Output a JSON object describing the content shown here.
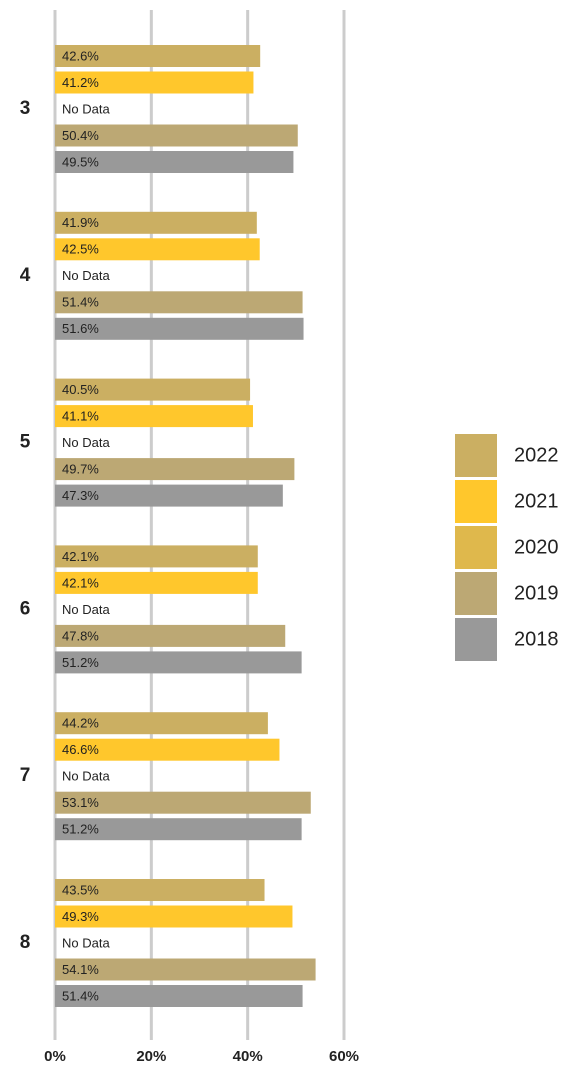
{
  "chart_data": {
    "type": "bar",
    "orientation": "horizontal",
    "categories": [
      "3",
      "4",
      "5",
      "6",
      "7",
      "8"
    ],
    "series": [
      {
        "name": "2022",
        "color": "#cbaf62",
        "values": [
          42.6,
          41.9,
          40.5,
          42.1,
          44.2,
          43.5
        ],
        "value_labels": [
          "42.6%",
          "41.9%",
          "40.5%",
          "42.1%",
          "44.2%",
          "43.5%"
        ]
      },
      {
        "name": "2021",
        "color": "#ffc72c",
        "values": [
          41.2,
          42.5,
          41.1,
          42.1,
          46.6,
          49.3
        ],
        "value_labels": [
          "41.2%",
          "42.5%",
          "41.1%",
          "42.1%",
          "46.6%",
          "49.3%"
        ]
      },
      {
        "name": "2020",
        "color": "#dfb84c",
        "values": [
          null,
          null,
          null,
          null,
          null,
          null
        ],
        "value_labels": [
          "No Data",
          "No Data",
          "No Data",
          "No Data",
          "No Data",
          "No Data"
        ]
      },
      {
        "name": "2019",
        "color": "#bca874",
        "values": [
          50.4,
          51.4,
          49.7,
          47.8,
          53.1,
          54.1
        ],
        "value_labels": [
          "50.4%",
          "51.4%",
          "49.7%",
          "47.8%",
          "53.1%",
          "54.1%"
        ]
      },
      {
        "name": "2018",
        "color": "#999999",
        "values": [
          49.5,
          51.6,
          47.3,
          51.2,
          51.2,
          51.4
        ],
        "value_labels": [
          "49.5%",
          "51.6%",
          "47.3%",
          "51.2%",
          "51.2%",
          "51.4%"
        ]
      }
    ],
    "xlim": [
      0,
      60
    ],
    "xticks": [
      {
        "value": 0,
        "label": "0%"
      },
      {
        "value": 20,
        "label": "20%"
      },
      {
        "value": 40,
        "label": "40%"
      },
      {
        "value": 60,
        "label": "60%"
      }
    ],
    "grid": true,
    "legend": "right"
  }
}
